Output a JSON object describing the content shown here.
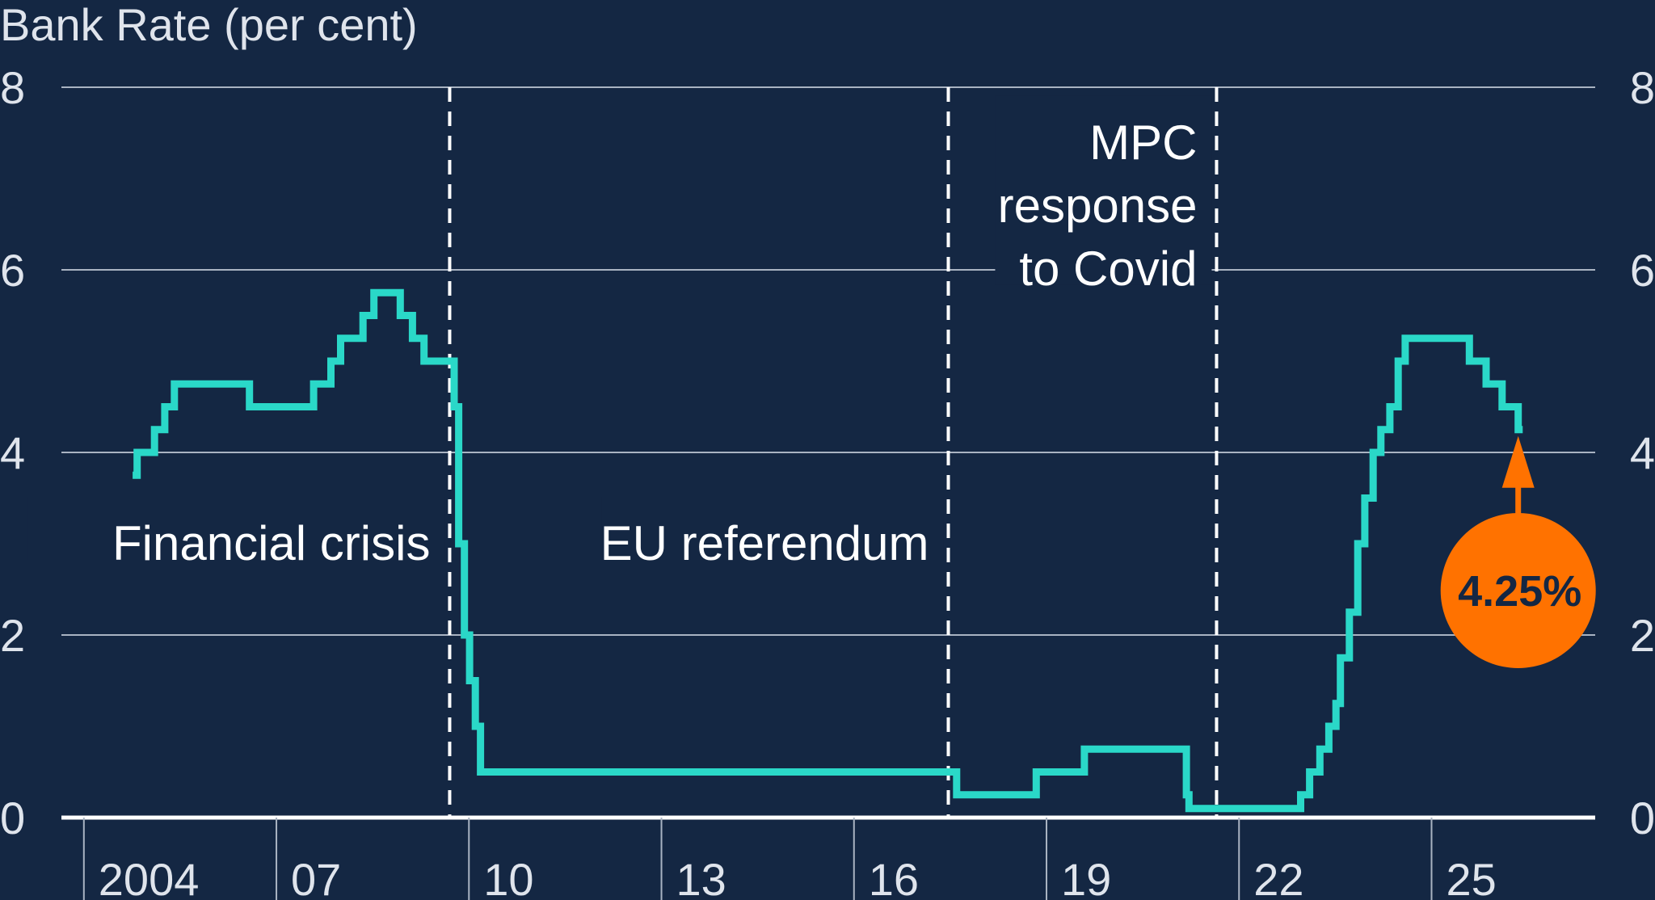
{
  "chart_data": {
    "type": "line",
    "title": "",
    "ylabel": "Bank Rate (per cent)",
    "xlabel": "",
    "ylim": [
      0,
      8
    ],
    "xlim": [
      2002.65,
      2026.55
    ],
    "y_ticks": [
      0,
      2,
      4,
      6,
      8
    ],
    "x_ticks": [
      {
        "value": 2003,
        "label": "2004"
      },
      {
        "value": 2006,
        "label": "07"
      },
      {
        "value": 2009,
        "label": "10"
      },
      {
        "value": 2012,
        "label": "13"
      },
      {
        "value": 2015,
        "label": "16"
      },
      {
        "value": 2018,
        "label": "19"
      },
      {
        "value": 2021,
        "label": "22"
      },
      {
        "value": 2024,
        "label": "25"
      }
    ],
    "grid": true,
    "series": [
      {
        "color": "#2ad8c8",
        "step": true,
        "points": [
          [
            2003.76,
            3.75
          ],
          [
            2003.83,
            4.0
          ],
          [
            2004.1,
            4.25
          ],
          [
            2004.26,
            4.5
          ],
          [
            2004.41,
            4.75
          ],
          [
            2005.58,
            4.5
          ],
          [
            2006.58,
            4.75
          ],
          [
            2006.85,
            5.0
          ],
          [
            2007.0,
            5.25
          ],
          [
            2007.35,
            5.5
          ],
          [
            2007.52,
            5.75
          ],
          [
            2007.93,
            5.5
          ],
          [
            2008.12,
            5.25
          ],
          [
            2008.3,
            5.0
          ],
          [
            2008.77,
            4.5
          ],
          [
            2008.84,
            3.0
          ],
          [
            2008.93,
            2.0
          ],
          [
            2009.01,
            1.5
          ],
          [
            2009.1,
            1.0
          ],
          [
            2009.18,
            0.5
          ],
          [
            2016.6,
            0.25
          ],
          [
            2017.84,
            0.5
          ],
          [
            2018.59,
            0.75
          ],
          [
            2020.18,
            0.25
          ],
          [
            2020.22,
            0.1
          ],
          [
            2021.96,
            0.25
          ],
          [
            2022.1,
            0.5
          ],
          [
            2022.26,
            0.75
          ],
          [
            2022.4,
            1.0
          ],
          [
            2022.51,
            1.25
          ],
          [
            2022.58,
            1.75
          ],
          [
            2022.72,
            2.25
          ],
          [
            2022.85,
            3.0
          ],
          [
            2022.96,
            3.5
          ],
          [
            2023.09,
            4.0
          ],
          [
            2023.21,
            4.25
          ],
          [
            2023.35,
            4.5
          ],
          [
            2023.48,
            5.0
          ],
          [
            2023.59,
            5.25
          ],
          [
            2024.59,
            5.0
          ],
          [
            2024.85,
            4.75
          ],
          [
            2025.1,
            4.5
          ],
          [
            2025.35,
            4.25
          ],
          [
            2025.42,
            4.25
          ]
        ]
      }
    ],
    "events": [
      {
        "x": 2008.7,
        "label_lines": [
          "Financial crisis"
        ],
        "anchor": "end",
        "y": 3.0
      },
      {
        "x": 2016.47,
        "label_lines": [
          "EU referendum"
        ],
        "anchor": "end",
        "y": 3.0
      },
      {
        "x": 2020.65,
        "label_lines": [
          "MPC",
          "response",
          "to Covid"
        ],
        "anchor": "end",
        "y": 6.7
      }
    ],
    "callout": {
      "x": 2025.35,
      "y": 4.25,
      "label": "4.25%",
      "color": "#ff7200"
    }
  }
}
